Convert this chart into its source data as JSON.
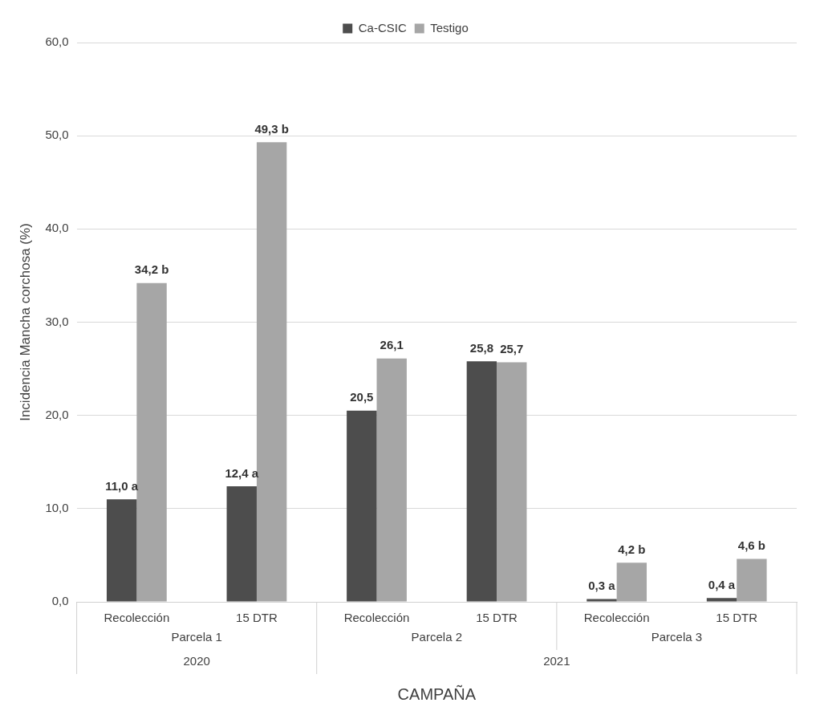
{
  "chart_data": {
    "type": "bar",
    "xlabel": "CAMPAÑA",
    "ylabel": "Incidencia Mancha corchosa (%)",
    "categories": [
      "Recolección",
      "15 DTR",
      "Recolección",
      "15 DTR",
      "Recolección",
      "15 DTR"
    ],
    "series": [
      {
        "name": "Ca-CSIC",
        "color": "#4d4d4d",
        "values": [
          11.0,
          12.4,
          20.5,
          25.8,
          0.3,
          0.4
        ],
        "value_labels": [
          "11,0 a",
          "12,4 a",
          "20,5",
          "25,8",
          "0,3 a",
          "0,4 a"
        ]
      },
      {
        "name": "Testigo",
        "color": "#a6a6a6",
        "values": [
          34.2,
          49.3,
          26.1,
          25.7,
          4.2,
          4.6
        ],
        "value_labels": [
          "34,2 b",
          "49,3 b",
          "26,1",
          "25,7",
          "4,2 b",
          "4,6 b"
        ]
      }
    ],
    "annotations": [
      "Parcela 1",
      "Parcela 2",
      "Parcela 3",
      "2020",
      "2021"
    ],
    "ylim": [
      0,
      60
    ],
    "yticks": [
      {
        "value": 0,
        "label": "0,0"
      },
      {
        "value": 10,
        "label": "10,0"
      },
      {
        "value": 20,
        "label": "20,0"
      },
      {
        "value": 30,
        "label": "30,0"
      },
      {
        "value": 40,
        "label": "40,0"
      },
      {
        "value": 50,
        "label": "50,0"
      },
      {
        "value": 60,
        "label": "60,0"
      }
    ],
    "grid": "y",
    "legend": "top"
  }
}
